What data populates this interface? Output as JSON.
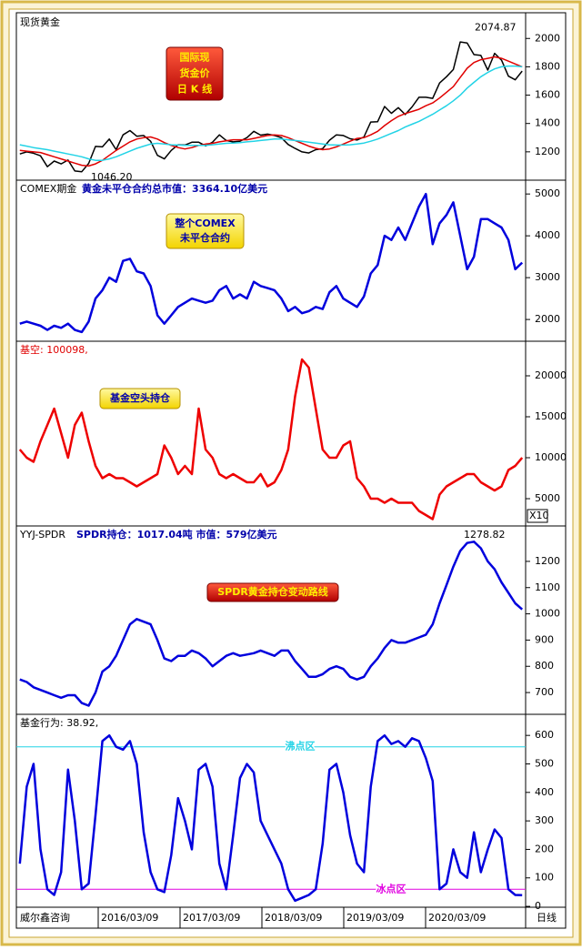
{
  "chart_data": [
    {
      "type": "line",
      "title": "现货黄金",
      "box_label": [
        "国际现",
        "货金价",
        "日 K 线"
      ],
      "high": 2074.87,
      "low": {
        "value": 1046.2,
        "label": "1046.20"
      },
      "ylim": [
        1000,
        2175
      ],
      "yticks": [
        1200,
        1400,
        1600,
        1800,
        2000
      ],
      "series": [
        {
          "color": "#000000",
          "values": [
            1185,
            1200,
            1190,
            1172,
            1095,
            1135,
            1115,
            1142,
            1065,
            1060,
            1118,
            1238,
            1235,
            1290,
            1215,
            1320,
            1350,
            1310,
            1315,
            1275,
            1175,
            1150,
            1210,
            1250,
            1248,
            1268,
            1268,
            1242,
            1268,
            1320,
            1280,
            1270,
            1275,
            1300,
            1345,
            1318,
            1325,
            1315,
            1300,
            1252,
            1224,
            1200,
            1192,
            1215,
            1222,
            1282,
            1320,
            1315,
            1292,
            1283,
            1305,
            1410,
            1413,
            1520,
            1472,
            1512,
            1463,
            1517,
            1585,
            1585,
            1577,
            1686,
            1730,
            1781,
            1975,
            1968,
            1886,
            1880,
            1777,
            1895,
            1847,
            1734,
            1708,
            1770
          ]
        },
        {
          "color": "#e00000",
          "values": [
            1210,
            1205,
            1200,
            1195,
            1180,
            1165,
            1150,
            1135,
            1120,
            1105,
            1100,
            1115,
            1140,
            1175,
            1210,
            1240,
            1270,
            1290,
            1300,
            1305,
            1290,
            1265,
            1245,
            1230,
            1220,
            1230,
            1245,
            1255,
            1260,
            1270,
            1278,
            1285,
            1285,
            1285,
            1295,
            1305,
            1315,
            1320,
            1315,
            1300,
            1280,
            1260,
            1240,
            1225,
            1215,
            1220,
            1235,
            1255,
            1275,
            1295,
            1300,
            1320,
            1345,
            1385,
            1420,
            1450,
            1470,
            1485,
            1500,
            1525,
            1545,
            1580,
            1620,
            1660,
            1725,
            1790,
            1830,
            1850,
            1860,
            1870,
            1860,
            1840,
            1820,
            1800
          ]
        },
        {
          "color": "#22d3e6",
          "values": [
            1250,
            1240,
            1230,
            1222,
            1215,
            1205,
            1195,
            1185,
            1175,
            1165,
            1150,
            1140,
            1140,
            1150,
            1165,
            1185,
            1205,
            1225,
            1240,
            1255,
            1260,
            1255,
            1250,
            1248,
            1245,
            1245,
            1245,
            1245,
            1250,
            1255,
            1260,
            1262,
            1265,
            1270,
            1275,
            1280,
            1285,
            1290,
            1290,
            1285,
            1280,
            1275,
            1268,
            1262,
            1255,
            1250,
            1248,
            1248,
            1250,
            1255,
            1262,
            1275,
            1290,
            1310,
            1330,
            1350,
            1375,
            1395,
            1415,
            1440,
            1465,
            1495,
            1525,
            1560,
            1600,
            1650,
            1690,
            1730,
            1760,
            1785,
            1800,
            1805,
            1805,
            1800
          ]
        }
      ]
    },
    {
      "type": "line",
      "title": "COMEX期金",
      "subtitle": "黄金未平仓合约总市值：3364.10亿美元",
      "box_label": [
        "整个COMEX",
        "未平仓合约"
      ],
      "ylim": [
        1480,
        5330
      ],
      "yticks": [
        2000,
        3000,
        4000,
        5000
      ],
      "series": [
        {
          "color": "#0000dd",
          "values": [
            1900,
            1950,
            1900,
            1850,
            1750,
            1850,
            1800,
            1900,
            1750,
            1700,
            1950,
            2500,
            2700,
            3000,
            2900,
            3400,
            3450,
            3150,
            3100,
            2800,
            2100,
            1900,
            2100,
            2300,
            2400,
            2500,
            2450,
            2400,
            2450,
            2700,
            2800,
            2500,
            2600,
            2500,
            2900,
            2800,
            2750,
            2700,
            2500,
            2200,
            2300,
            2150,
            2200,
            2300,
            2250,
            2650,
            2800,
            2500,
            2400,
            2300,
            2550,
            3100,
            3300,
            4000,
            3900,
            4200,
            3900,
            4300,
            4700,
            5000,
            3800,
            4300,
            4500,
            4800,
            4000,
            3200,
            3500,
            4400,
            4400,
            4300,
            4200,
            3900,
            3200,
            3360
          ]
        }
      ]
    },
    {
      "type": "line",
      "title": "基空: 100098,",
      "box_label": [
        "基金空头持仓"
      ],
      "scale_label": "X10",
      "ylim": [
        1670,
        24220
      ],
      "yticks": [
        5000,
        10000,
        15000,
        20000
      ],
      "series": [
        {
          "color": "#ee0000",
          "values": [
            11000,
            10000,
            9500,
            12000,
            14000,
            16000,
            13000,
            10000,
            14000,
            15500,
            12000,
            9000,
            7500,
            8000,
            7500,
            7500,
            7000,
            6500,
            7000,
            7500,
            8000,
            11500,
            10000,
            8000,
            9000,
            8000,
            16000,
            11000,
            10000,
            8000,
            7500,
            8000,
            7500,
            7000,
            7000,
            8000,
            6500,
            7000,
            8500,
            11000,
            17500,
            22000,
            21000,
            16000,
            11000,
            10000,
            10000,
            11500,
            12000,
            7500,
            6500,
            5000,
            5000,
            4500,
            5000,
            4500,
            4500,
            4500,
            3500,
            3000,
            2500,
            5500,
            6500,
            7000,
            7500,
            8000,
            8000,
            7000,
            6500,
            6000,
            6500,
            8500,
            9000,
            10000
          ]
        }
      ]
    },
    {
      "type": "line",
      "title": "YYJ-SPDR",
      "subtitle": "SPDR持仓：1017.04吨    市值：579亿美元",
      "box_label": [
        "SPDR黄金持仓变动路线"
      ],
      "high": 1278.82,
      "ylim": [
        617,
        1335
      ],
      "yticks": [
        700,
        800,
        900,
        1000,
        1100,
        1200
      ],
      "series": [
        {
          "color": "#0000dd",
          "values": [
            750,
            740,
            720,
            710,
            700,
            690,
            680,
            690,
            690,
            660,
            650,
            700,
            780,
            800,
            840,
            900,
            960,
            980,
            970,
            960,
            900,
            830,
            820,
            840,
            840,
            860,
            850,
            830,
            800,
            820,
            840,
            850,
            840,
            845,
            850,
            860,
            850,
            840,
            860,
            860,
            820,
            790,
            760,
            760,
            770,
            790,
            800,
            790,
            760,
            750,
            760,
            800,
            830,
            870,
            900,
            890,
            890,
            900,
            910,
            920,
            960,
            1040,
            1110,
            1180,
            1240,
            1270,
            1275,
            1250,
            1200,
            1170,
            1120,
            1080,
            1040,
            1017
          ]
        }
      ]
    },
    {
      "type": "line",
      "title": "基金行为: 38.92,",
      "ylim": [
        -3,
        674
      ],
      "yticks": [
        0,
        100,
        200,
        300,
        400,
        500,
        600
      ],
      "levels": [
        {
          "label": "沸点区",
          "value": 560,
          "color": "#22d3e6"
        },
        {
          "label": "冰点区",
          "value": 60,
          "color": "#e000e0"
        }
      ],
      "series": [
        {
          "color": "#0000dd",
          "values": [
            150,
            420,
            500,
            200,
            60,
            40,
            120,
            480,
            300,
            60,
            80,
            320,
            580,
            600,
            560,
            550,
            580,
            500,
            260,
            120,
            60,
            50,
            180,
            380,
            300,
            200,
            480,
            500,
            420,
            150,
            60,
            250,
            450,
            500,
            470,
            300,
            250,
            200,
            150,
            60,
            20,
            30,
            40,
            60,
            220,
            480,
            500,
            400,
            250,
            150,
            120,
            420,
            580,
            600,
            570,
            580,
            560,
            590,
            580,
            520,
            440,
            60,
            80,
            200,
            120,
            100,
            260,
            120,
            200,
            270,
            240,
            60,
            40,
            39
          ]
        }
      ]
    }
  ],
  "x_axis": {
    "source": "威尔鑫咨询",
    "labels": [
      "2016/03/09",
      "2017/03/09",
      "2018/03/09",
      "2019/03/09",
      "2020/03/09"
    ],
    "period": "日线"
  }
}
